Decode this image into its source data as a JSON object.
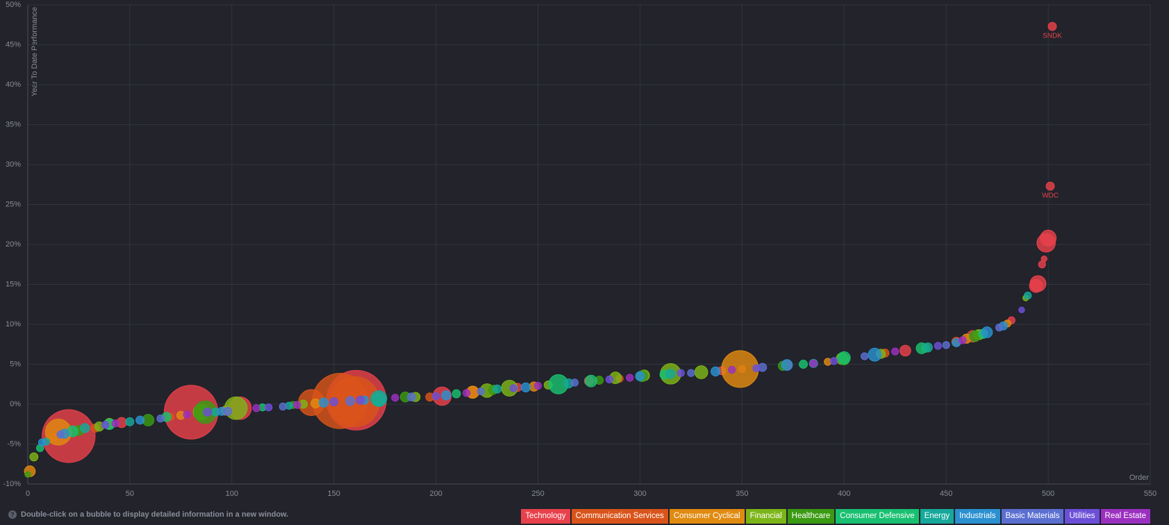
{
  "chart_data": {
    "type": "bubble",
    "ylabel": "Year To Date Performance",
    "xlabel": "Order",
    "note": "Double-click on a bubble to display detailed information in a new window.",
    "xlim": [
      0,
      550
    ],
    "xticks": [
      0,
      50,
      100,
      150,
      200,
      250,
      300,
      350,
      400,
      450,
      500,
      550
    ],
    "ylim": [
      -10,
      50
    ],
    "yticks": [
      {
        "value": -10,
        "label": "-10%"
      },
      {
        "value": -5,
        "label": "-5%"
      },
      {
        "value": 0,
        "label": "0%"
      },
      {
        "value": 5,
        "label": "5%"
      },
      {
        "value": 10,
        "label": "10%"
      },
      {
        "value": 15,
        "label": "15%"
      },
      {
        "value": 20,
        "label": "20%"
      },
      {
        "value": 25,
        "label": "25%"
      },
      {
        "value": 30,
        "label": "30%"
      },
      {
        "value": 35,
        "label": "35%"
      },
      {
        "value": 40,
        "label": "40%"
      },
      {
        "value": 45,
        "label": "45%"
      },
      {
        "value": 50,
        "label": "50%"
      }
    ],
    "grid": true,
    "annotations": [
      {
        "text": "SNDK",
        "x": 502,
        "y": 47.3
      },
      {
        "text": "WDC",
        "x": 501,
        "y": 27.3
      }
    ],
    "series": [
      {
        "name": "Technology",
        "color": "#e8414b",
        "x": [
          20,
          46,
          80,
          104,
          161,
          203,
          240,
          275,
          340,
          372,
          430,
          463,
          482,
          494,
          495,
          497,
          498,
          499,
          500,
          501,
          502
        ],
        "values": [
          -4,
          -2.3,
          -1,
          -0.5,
          0.5,
          1.0,
          2.1,
          2.9,
          4.2,
          4.9,
          6.7,
          8.5,
          10.5,
          14.8,
          15.1,
          17.5,
          18.2,
          20.2,
          20.8,
          27.3,
          47.3
        ],
        "size": [
          330,
          12,
          340,
          60,
          420,
          40,
          8,
          10,
          8,
          12,
          14,
          16,
          6,
          20,
          30,
          6,
          4,
          40,
          30,
          8,
          8
        ]
      },
      {
        "name": "Communication Services",
        "color": "#d9541a",
        "x": [
          12,
          33,
          70,
          139,
          153,
          160,
          197,
          218,
          290,
          350,
          420,
          455,
          466
        ],
        "values": [
          -4.2,
          -3,
          -1.6,
          0.2,
          0.4,
          0.3,
          0.9,
          1.5,
          3.2,
          4.4,
          6.4,
          7.8,
          8.8
        ],
        "size": [
          10,
          8,
          6,
          80,
          360,
          300,
          8,
          16,
          6,
          6,
          8,
          10,
          8
        ]
      },
      {
        "name": "Consumer Cyclical",
        "color": "#e08a10",
        "x": [
          1,
          15,
          40,
          75,
          97,
          141,
          218,
          248,
          349,
          392,
          460,
          480
        ],
        "values": [
          -8.4,
          -3.5,
          -2.4,
          -1.4,
          -0.8,
          0.1,
          1.5,
          2.2,
          4.4,
          5.3,
          8.2,
          10.1
        ],
        "size": [
          14,
          80,
          12,
          8,
          10,
          10,
          18,
          10,
          160,
          6,
          10,
          6
        ]
      },
      {
        "name": "Financial",
        "color": "#7cb518",
        "x": [
          3,
          35,
          85,
          102,
          135,
          190,
          225,
          236,
          255,
          288,
          302,
          315,
          330,
          399,
          418,
          466,
          489
        ],
        "values": [
          -6.6,
          -2.8,
          -1,
          -0.5,
          0,
          0.9,
          1.7,
          2,
          2.4,
          3.3,
          3.6,
          3.8,
          4,
          5.7,
          6.3,
          8.7,
          13.3
        ],
        "size": [
          8,
          10,
          30,
          60,
          8,
          10,
          22,
          30,
          8,
          16,
          14,
          50,
          20,
          16,
          10,
          12,
          4
        ]
      },
      {
        "name": "Healthcare",
        "color": "#3a9a12",
        "x": [
          0,
          25,
          59,
          87,
          130,
          185,
          228,
          280,
          301,
          370,
          400,
          440,
          464
        ],
        "values": [
          -8.8,
          -3.3,
          -2,
          -1,
          -0.1,
          0.9,
          1.8,
          3,
          3.5,
          4.8,
          5.6,
          7,
          8.5
        ],
        "size": [
          4,
          12,
          16,
          60,
          6,
          12,
          10,
          8,
          14,
          10,
          14,
          8,
          14
        ]
      },
      {
        "name": "Consumer Defensive",
        "color": "#18c070",
        "x": [
          6,
          22,
          40,
          68,
          115,
          172,
          210,
          260,
          276,
          312,
          380,
          400,
          438,
          468
        ],
        "values": [
          -5.5,
          -3.4,
          -2.5,
          -1.6,
          -0.4,
          0.6,
          1.3,
          2.5,
          2.9,
          3.7,
          5,
          5.8,
          7,
          8.8
        ],
        "size": [
          6,
          14,
          14,
          10,
          6,
          20,
          8,
          44,
          16,
          10,
          8,
          18,
          14,
          10
        ]
      },
      {
        "name": "Energy",
        "color": "#16a89a",
        "x": [
          9,
          28,
          50,
          92,
          128,
          172,
          230,
          265,
          315,
          385,
          441,
          490
        ],
        "values": [
          -4.7,
          -3,
          -2.2,
          -1,
          -0.2,
          0.7,
          1.9,
          2.6,
          3.8,
          5.1,
          7.1,
          13.6
        ],
        "size": [
          6,
          10,
          8,
          8,
          6,
          30,
          8,
          10,
          10,
          8,
          10,
          6
        ]
      },
      {
        "name": "Industrials",
        "color": "#2a90d0",
        "x": [
          7,
          18,
          55,
          95,
          145,
          165,
          205,
          244,
          300,
          337,
          372,
          415,
          455,
          470,
          478
        ],
        "values": [
          -4.8,
          -3.7,
          -2,
          -0.9,
          0.2,
          0.5,
          1.1,
          2.1,
          3.5,
          4.1,
          4.9,
          6.2,
          7.7,
          9,
          9.8
        ],
        "size": [
          6,
          10,
          8,
          8,
          10,
          8,
          10,
          10,
          10,
          10,
          14,
          20,
          8,
          14,
          8
        ]
      },
      {
        "name": "Basic Materials",
        "color": "#5a6fd0",
        "x": [
          16,
          65,
          98,
          125,
          158,
          188,
          222,
          268,
          325,
          360,
          410,
          450,
          476
        ],
        "values": [
          -3.8,
          -1.8,
          -0.9,
          -0.3,
          0.4,
          0.9,
          1.6,
          2.7,
          3.9,
          4.6,
          6,
          7.4,
          9.6
        ],
        "size": [
          6,
          6,
          8,
          6,
          10,
          8,
          6,
          6,
          6,
          8,
          6,
          6,
          6
        ]
      },
      {
        "name": "Utilities",
        "color": "#6b4fd8",
        "x": [
          38,
          88,
          118,
          150,
          163,
          200,
          238,
          285,
          320,
          357,
          395,
          446,
          487
        ],
        "values": [
          -2.6,
          -1,
          -0.4,
          0.3,
          0.5,
          1,
          2,
          3.1,
          3.9,
          4.5,
          5.4,
          7.3,
          11.8
        ],
        "size": [
          6,
          8,
          6,
          8,
          8,
          6,
          6,
          6,
          6,
          6,
          6,
          6,
          4
        ]
      },
      {
        "name": "Real Estate",
        "color": "#9b30c0",
        "x": [
          43,
          78,
          112,
          132,
          180,
          215,
          250,
          295,
          345,
          385,
          425,
          458
        ],
        "values": [
          -2.4,
          -1.3,
          -0.5,
          -0.1,
          0.8,
          1.4,
          2.3,
          3.3,
          4.3,
          5.1,
          6.6,
          8
        ],
        "size": [
          6,
          6,
          6,
          6,
          6,
          6,
          6,
          6,
          6,
          6,
          6,
          6
        ]
      }
    ]
  }
}
